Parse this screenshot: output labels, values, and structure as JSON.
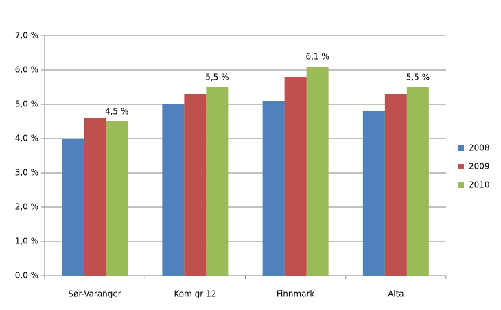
{
  "chart_data": {
    "type": "bar",
    "categories": [
      "Sør-Varanger",
      "Kom gr 12",
      "Finnmark",
      "Alta"
    ],
    "series": [
      {
        "name": "2008",
        "color": "#4f81bd",
        "values": [
          4.0,
          5.0,
          5.1,
          4.8
        ]
      },
      {
        "name": "2009",
        "color": "#c0504d",
        "values": [
          4.6,
          5.3,
          5.8,
          5.3
        ]
      },
      {
        "name": "2010",
        "color": "#9bbb59",
        "values": [
          4.5,
          5.5,
          6.1,
          5.5
        ],
        "value_labels": [
          "4,5 %",
          "5,5 %",
          "6,1 %",
          "5,5 %"
        ]
      }
    ],
    "ylim": [
      0,
      7
    ],
    "yticks": [
      {
        "value": 0,
        "label": "0,0 %"
      },
      {
        "value": 1,
        "label": "1,0 %"
      },
      {
        "value": 2,
        "label": "2,0 %"
      },
      {
        "value": 3,
        "label": "3,0 %"
      },
      {
        "value": 4,
        "label": "4,0 %"
      },
      {
        "value": 5,
        "label": "5,0 %"
      },
      {
        "value": 6,
        "label": "6,0 %"
      },
      {
        "value": 7,
        "label": "7,0 %"
      }
    ],
    "grid": true,
    "legend": "right"
  }
}
